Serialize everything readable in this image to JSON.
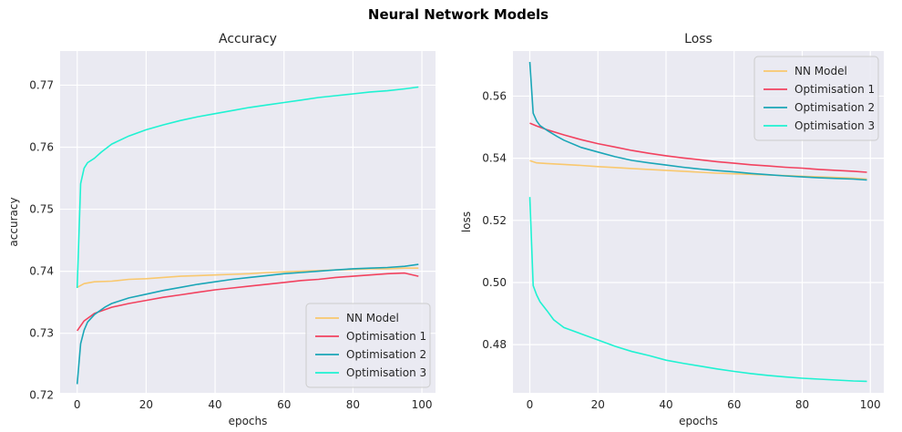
{
  "figure": {
    "suptitle": "Neural Network Models",
    "background": "#ffffff",
    "axes_facecolor": "#eaeaf2",
    "grid_color": "#ffffff"
  },
  "chart_data": [
    {
      "type": "line",
      "title": "Accuracy",
      "xlabel": "epochs",
      "ylabel": "accuracy",
      "xlim": [
        -4.95,
        103.95
      ],
      "ylim": [
        0.7204,
        0.7755
      ],
      "xticks": [
        0,
        20,
        40,
        60,
        80,
        100
      ],
      "yticks": [
        0.72,
        0.73,
        0.74,
        0.75,
        0.76,
        0.77
      ],
      "ytick_labels": [
        "0.72",
        "0.73",
        "0.74",
        "0.75",
        "0.76",
        "0.77"
      ],
      "grid": true,
      "legend_position": "lower-right",
      "series": [
        {
          "name": "NN Model",
          "color": "#f9c86e",
          "x": [
            0,
            2,
            5,
            10,
            15,
            20,
            25,
            30,
            35,
            40,
            45,
            50,
            55,
            60,
            65,
            70,
            75,
            80,
            85,
            90,
            95,
            99
          ],
          "y": [
            0.7374,
            0.738,
            0.7383,
            0.7384,
            0.7387,
            0.7388,
            0.739,
            0.7392,
            0.7393,
            0.7394,
            0.7395,
            0.7396,
            0.7398,
            0.7399,
            0.74,
            0.7401,
            0.7402,
            0.7403,
            0.7404,
            0.7404,
            0.7405,
            0.7405
          ]
        },
        {
          "name": "Optimisation 1",
          "color": "#f2425f",
          "x": [
            0,
            2,
            5,
            10,
            15,
            20,
            25,
            30,
            35,
            40,
            45,
            50,
            55,
            60,
            65,
            70,
            75,
            80,
            85,
            90,
            95,
            99
          ],
          "y": [
            0.7304,
            0.732,
            0.7332,
            0.7342,
            0.7348,
            0.7353,
            0.7358,
            0.7362,
            0.7366,
            0.737,
            0.7373,
            0.7376,
            0.7379,
            0.7382,
            0.7385,
            0.7387,
            0.739,
            0.7392,
            0.7394,
            0.7396,
            0.7397,
            0.7392
          ]
        },
        {
          "name": "Optimisation 2",
          "color": "#1aa6b7",
          "x": [
            0,
            1,
            2,
            3,
            5,
            8,
            10,
            15,
            20,
            25,
            30,
            35,
            40,
            45,
            50,
            55,
            60,
            65,
            70,
            75,
            80,
            85,
            90,
            95,
            99
          ],
          "y": [
            0.7218,
            0.7283,
            0.7305,
            0.7318,
            0.733,
            0.7342,
            0.7348,
            0.7357,
            0.7363,
            0.7369,
            0.7374,
            0.7379,
            0.7383,
            0.7387,
            0.739,
            0.7393,
            0.7396,
            0.7398,
            0.74,
            0.7402,
            0.7404,
            0.7405,
            0.7406,
            0.7408,
            0.7411
          ]
        },
        {
          "name": "Optimisation 3",
          "color": "#1ff2d2",
          "x": [
            0,
            1,
            2,
            3,
            5,
            7,
            10,
            15,
            20,
            25,
            30,
            35,
            40,
            45,
            50,
            55,
            60,
            65,
            70,
            75,
            80,
            85,
            90,
            95,
            99
          ],
          "y": [
            0.7373,
            0.7541,
            0.7566,
            0.7575,
            0.7582,
            0.7592,
            0.7605,
            0.7618,
            0.7628,
            0.7636,
            0.7643,
            0.7649,
            0.7654,
            0.7659,
            0.7664,
            0.7668,
            0.7672,
            0.7676,
            0.768,
            0.7683,
            0.7686,
            0.7689,
            0.7691,
            0.7694,
            0.7697
          ]
        }
      ]
    },
    {
      "type": "line",
      "title": "Loss",
      "xlabel": "epochs",
      "ylabel": "loss",
      "xlim": [
        -4.95,
        103.95
      ],
      "ylim": [
        0.4645,
        0.5745
      ],
      "xticks": [
        0,
        20,
        40,
        60,
        80,
        100
      ],
      "yticks": [
        0.48,
        0.5,
        0.52,
        0.54,
        0.56
      ],
      "ytick_labels": [
        "0.48",
        "0.50",
        "0.52",
        "0.54",
        "0.56"
      ],
      "grid": true,
      "legend_position": "upper-right",
      "series": [
        {
          "name": "NN Model",
          "color": "#f9c86e",
          "x": [
            0,
            2,
            5,
            10,
            15,
            20,
            25,
            30,
            35,
            40,
            45,
            50,
            55,
            60,
            65,
            70,
            75,
            80,
            85,
            90,
            95,
            99
          ],
          "y": [
            0.5392,
            0.5385,
            0.5383,
            0.538,
            0.5377,
            0.5373,
            0.537,
            0.5367,
            0.5364,
            0.5361,
            0.5358,
            0.5355,
            0.5352,
            0.535,
            0.5348,
            0.5346,
            0.5344,
            0.5342,
            0.534,
            0.5338,
            0.5336,
            0.5333
          ]
        },
        {
          "name": "Optimisation 1",
          "color": "#f2425f",
          "x": [
            0,
            2,
            5,
            10,
            15,
            20,
            25,
            30,
            35,
            40,
            45,
            50,
            55,
            60,
            65,
            70,
            75,
            80,
            85,
            90,
            95,
            99
          ],
          "y": [
            0.5513,
            0.5504,
            0.5492,
            0.5475,
            0.546,
            0.5447,
            0.5436,
            0.5425,
            0.5416,
            0.5408,
            0.5401,
            0.5395,
            0.5389,
            0.5384,
            0.5379,
            0.5375,
            0.5371,
            0.5368,
            0.5364,
            0.5361,
            0.5358,
            0.5355
          ]
        },
        {
          "name": "Optimisation 2",
          "color": "#1aa6b7",
          "x": [
            0,
            1,
            2,
            3,
            5,
            8,
            10,
            15,
            20,
            25,
            30,
            35,
            40,
            45,
            50,
            55,
            60,
            65,
            70,
            75,
            80,
            85,
            90,
            95,
            99
          ],
          "y": [
            0.571,
            0.5545,
            0.552,
            0.5505,
            0.549,
            0.547,
            0.5458,
            0.5435,
            0.542,
            0.5405,
            0.5393,
            0.5385,
            0.5378,
            0.5371,
            0.5365,
            0.536,
            0.5356,
            0.5351,
            0.5347,
            0.5343,
            0.534,
            0.5337,
            0.5335,
            0.5333,
            0.533
          ]
        },
        {
          "name": "Optimisation 3",
          "color": "#1ff2d2",
          "x": [
            0,
            1,
            2,
            3,
            5,
            7,
            10,
            15,
            20,
            25,
            30,
            35,
            40,
            45,
            50,
            55,
            60,
            65,
            70,
            75,
            80,
            85,
            90,
            95,
            99
          ],
          "y": [
            0.5275,
            0.499,
            0.496,
            0.4938,
            0.491,
            0.488,
            0.4855,
            0.4835,
            0.4815,
            0.4795,
            0.4778,
            0.4765,
            0.475,
            0.474,
            0.4731,
            0.4722,
            0.4714,
            0.4707,
            0.4701,
            0.4696,
            0.4692,
            0.4689,
            0.4686,
            0.4683,
            0.4682
          ]
        }
      ]
    }
  ]
}
